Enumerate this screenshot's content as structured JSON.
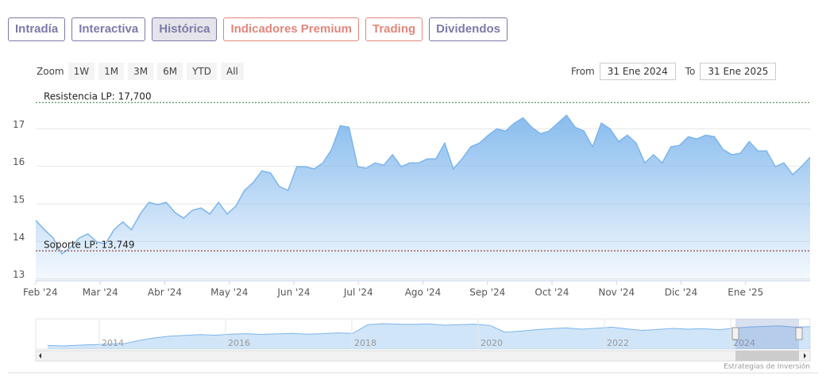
{
  "tabs": [
    {
      "label": "Intradía",
      "color": "#7b7aa8",
      "selected": false
    },
    {
      "label": "Interactiva",
      "color": "#7b7aa8",
      "selected": false
    },
    {
      "label": "Histórica",
      "color": "#7b7aa8",
      "selected": true
    },
    {
      "label": "Indicadores Premium",
      "color": "#e0877d",
      "selected": false
    },
    {
      "label": "Trading",
      "color": "#e0877d",
      "selected": false
    },
    {
      "label": "Dividendos",
      "color": "#7b7aa8",
      "selected": false
    }
  ],
  "zoom": {
    "label": "Zoom",
    "buttons": [
      "1W",
      "1M",
      "3M",
      "6M",
      "YTD",
      "All"
    ]
  },
  "range": {
    "from_label": "From",
    "from": "31 Ene 2024",
    "to_label": "To",
    "to": "31 Ene 2025"
  },
  "chart_data": {
    "type": "area",
    "color": "#7cb5ec",
    "x_labels": [
      "Feb '24",
      "Mar '24",
      "Abr '24",
      "May '24",
      "Jun '24",
      "Jul '24",
      "Ago '24",
      "Sep '24",
      "Oct '24",
      "Nov '24",
      "Dic '24",
      "Ene '25"
    ],
    "values": [
      14.56,
      14.31,
      14.09,
      13.67,
      13.84,
      14.09,
      14.2,
      13.99,
      13.93,
      14.31,
      14.52,
      14.31,
      14.73,
      15.04,
      14.98,
      15.04,
      14.77,
      14.62,
      14.83,
      14.89,
      14.73,
      15.04,
      14.73,
      14.94,
      15.36,
      15.57,
      15.88,
      15.82,
      15.46,
      15.36,
      15.99,
      15.99,
      15.93,
      16.09,
      16.45,
      17.08,
      17.04,
      15.99,
      15.95,
      16.09,
      16.03,
      16.31,
      15.99,
      16.09,
      16.09,
      16.2,
      16.2,
      16.62,
      15.93,
      16.2,
      16.52,
      16.62,
      16.83,
      17.0,
      16.94,
      17.15,
      17.29,
      17.04,
      16.87,
      16.94,
      17.15,
      17.36,
      17.04,
      16.94,
      16.52,
      17.15,
      17.0,
      16.66,
      16.83,
      16.62,
      16.09,
      16.31,
      16.09,
      16.52,
      16.56,
      16.79,
      16.73,
      16.83,
      16.79,
      16.45,
      16.31,
      16.35,
      16.66,
      16.41,
      16.41,
      15.99,
      16.09,
      15.78,
      15.99,
      16.24
    ],
    "ylim": [
      12.95,
      18
    ],
    "yticks": [
      13,
      14,
      15,
      16,
      17
    ],
    "grid": true,
    "plot_lines": [
      {
        "value": 17.7,
        "label": "Resistencia LP: 17,700",
        "color": "#2e7d32"
      },
      {
        "value": 13.749,
        "label": "Soporte LP: 13,749",
        "color": "#8b1a1a"
      }
    ],
    "navigator": {
      "values": [
        9.5,
        9.3,
        9.6,
        9.8,
        10.0,
        10.2,
        11.5,
        12.5,
        13.2,
        13.5,
        13.8,
        13.6,
        14.0,
        14.2,
        13.9,
        14.1,
        14.3,
        14.0,
        14.2,
        14.5,
        14.3,
        17.8,
        18.2,
        18.0,
        17.9,
        18.1,
        17.6,
        17.8,
        18.0,
        17.5,
        14.8,
        15.2,
        15.8,
        16.2,
        16.5,
        16.0,
        16.4,
        16.8,
        16.1,
        15.5,
        15.9,
        16.3,
        16.0,
        16.2,
        15.8,
        16.4,
        16.9,
        17.1,
        17.3,
        16.8,
        17.0
      ],
      "x_labels": [
        "2014",
        "2016",
        "2018",
        "2020",
        "2022",
        "2024"
      ]
    },
    "credits": "Estrategias de Inversión"
  }
}
